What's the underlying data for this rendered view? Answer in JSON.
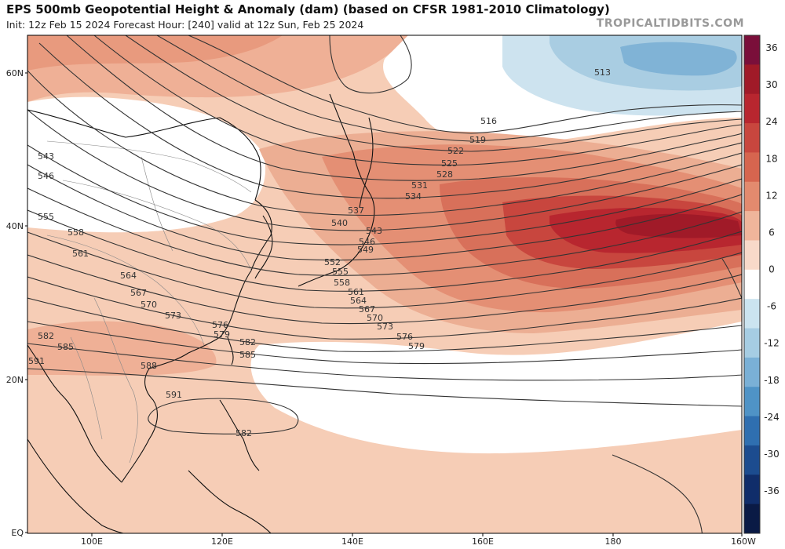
{
  "header": {
    "title": "EPS 500mb Geopotential Height & Anomaly (dam) (based on CFSR 1981-2010 Climatology)",
    "subtitle": "Init: 12z Feb 15 2024   Forecast Hour: [240]   valid at 12z Sun, Feb 25 2024",
    "credit": "TROPICALTIDBITS.COM"
  },
  "map": {
    "lat_labels": [
      "60N",
      "40N",
      "20N",
      "EQ"
    ],
    "lon_labels": [
      "100E",
      "120E",
      "140E",
      "160E",
      "180",
      "160W"
    ],
    "contour_labels": [
      "513",
      "516",
      "519",
      "522",
      "525",
      "528",
      "531",
      "534",
      "537",
      "540",
      "543",
      "546",
      "549",
      "552",
      "555",
      "558",
      "561",
      "564",
      "567",
      "570",
      "573",
      "576",
      "579",
      "582",
      "585",
      "588",
      "591",
      "543",
      "546",
      "555",
      "558",
      "561",
      "564",
      "567",
      "570",
      "573",
      "576",
      "579",
      "582",
      "585",
      "591",
      "582"
    ]
  },
  "colorbar": {
    "labels": [
      "36",
      "30",
      "24",
      "18",
      "12",
      "6",
      "0",
      "-6",
      "-12",
      "-18",
      "-24",
      "-30",
      "-36"
    ],
    "colors": [
      "#7a0f3a",
      "#a01a28",
      "#b8262f",
      "#c8463e",
      "#d6654f",
      "#e38a6e",
      "#efb59b",
      "#f8d9c9",
      "#ffffff",
      "#cbe4f0",
      "#a6cde3",
      "#7ab0d6",
      "#4f93c6",
      "#2f6fb0",
      "#1c4c8f",
      "#102d6a",
      "#0a1a45"
    ]
  }
}
